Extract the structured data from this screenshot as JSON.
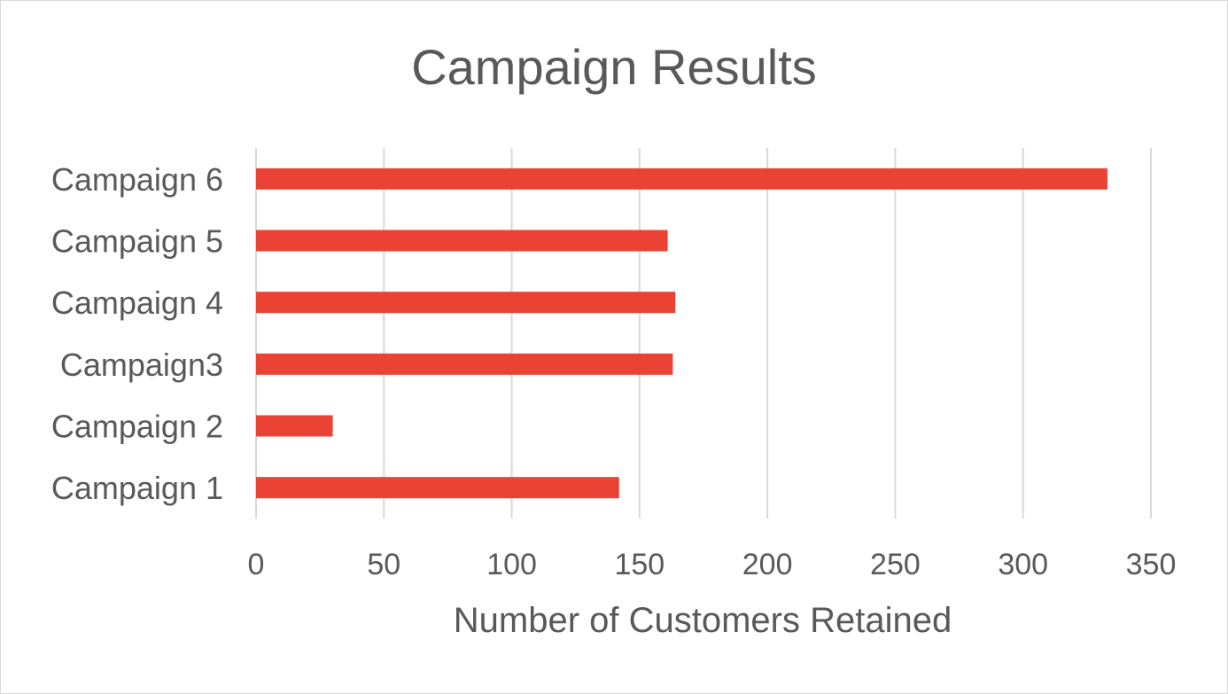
{
  "chart_data": {
    "type": "bar",
    "orientation": "horizontal",
    "title": "Campaign Results",
    "xlabel": "Number of Customers Retained",
    "ylabel": "",
    "categories": [
      "Campaign 1",
      "Campaign 2",
      "Campaign3",
      "Campaign 4",
      "Campaign 5",
      "Campaign 6"
    ],
    "values": [
      142,
      30,
      163,
      164,
      161,
      333
    ],
    "xlim": [
      0,
      350
    ],
    "xticks": [
      "0",
      "50",
      "100",
      "150",
      "200",
      "250",
      "300",
      "350"
    ],
    "grid": true,
    "legend": "none",
    "bar_color": "#ea4335"
  }
}
